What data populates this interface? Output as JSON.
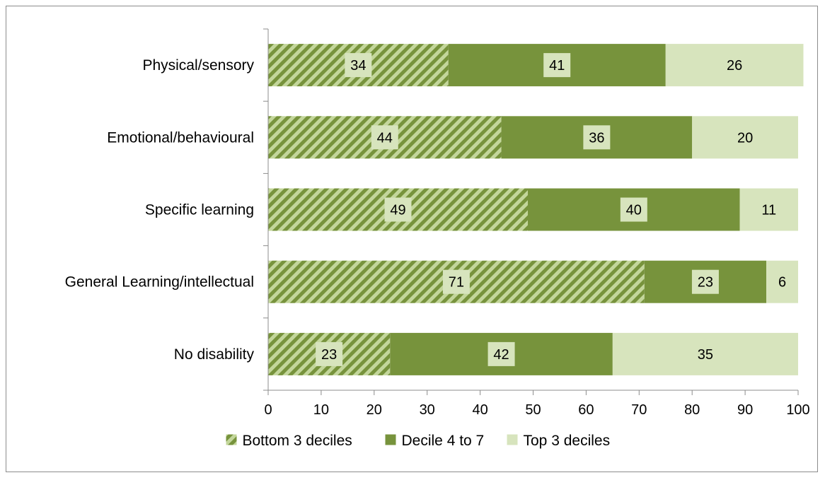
{
  "chart_data": {
    "type": "bar",
    "orientation": "horizontal",
    "stacked": true,
    "categories": [
      "Physical/sensory",
      "Emotional/behavioural",
      "Specific learning",
      "General Learning/intellectual",
      "No disability"
    ],
    "series": [
      {
        "name": "Bottom 3 deciles",
        "values": [
          34,
          44,
          49,
          71,
          23
        ],
        "color": "#77933c",
        "pattern": "diagonal-stripes"
      },
      {
        "name": "Decile 4 to 7",
        "values": [
          41,
          36,
          40,
          23,
          42
        ],
        "color": "#77933c"
      },
      {
        "name": "Top 3 deciles",
        "values": [
          26,
          20,
          11,
          6,
          35
        ],
        "color": "#d7e4bd"
      }
    ],
    "data_labels": [
      [
        "34",
        "41",
        "26"
      ],
      [
        "44",
        "36",
        "20"
      ],
      [
        "49",
        "40",
        "11"
      ],
      [
        "71",
        "23",
        "6"
      ],
      [
        "23",
        "42",
        "35"
      ]
    ],
    "xlim": [
      0,
      100
    ],
    "xticks": [
      0,
      10,
      20,
      30,
      40,
      50,
      60,
      70,
      80,
      90,
      100
    ],
    "grid": false,
    "legend_position": "bottom",
    "title": "",
    "xlabel": "",
    "ylabel": ""
  }
}
